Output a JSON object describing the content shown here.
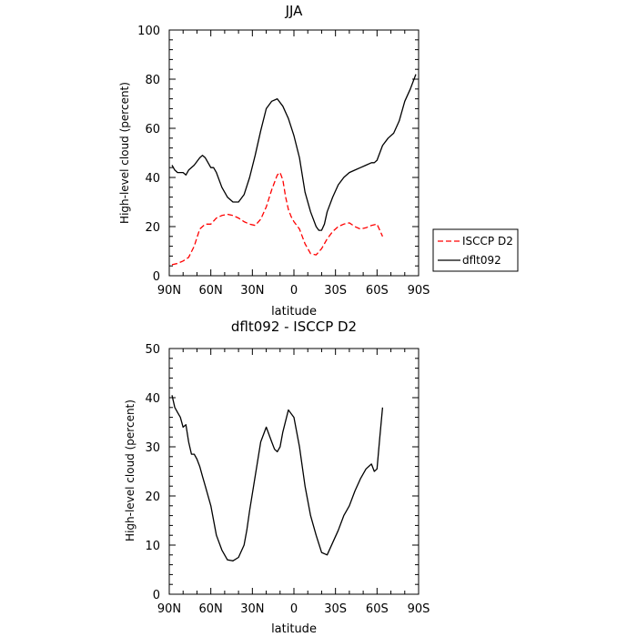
{
  "chart_data": [
    {
      "type": "line",
      "title": "JJA",
      "xlabel": "latitude",
      "ylabel": "High-level cloud (percent)",
      "x_tick_labels": [
        "90N",
        "60N",
        "30N",
        "0",
        "30S",
        "60S",
        "90S"
      ],
      "x_ticks": [
        90,
        60,
        30,
        0,
        -30,
        -60,
        -90
      ],
      "y_ticks": [
        0,
        20,
        40,
        60,
        80,
        100
      ],
      "xlim": [
        90,
        -90
      ],
      "ylim": [
        0,
        100
      ],
      "grid": false,
      "legend_position": "right, outside",
      "series": [
        {
          "name": "ISCCP D2",
          "color": "#ff0000",
          "style": "dashed",
          "x": [
            88,
            84,
            80,
            76,
            72,
            68,
            64,
            60,
            56,
            52,
            48,
            44,
            40,
            36,
            32,
            28,
            24,
            20,
            16,
            12,
            10,
            8,
            6,
            4,
            2,
            0,
            -4,
            -8,
            -12,
            -16,
            -20,
            -24,
            -28,
            -32,
            -36,
            -40,
            -44,
            -48,
            -52,
            -56,
            -60,
            -64
          ],
          "y": [
            4.5,
            5,
            6,
            7.5,
            12,
            19,
            21,
            21,
            23.5,
            24.5,
            25,
            24.5,
            23.5,
            22,
            21,
            20.5,
            23,
            28,
            35,
            41,
            42,
            39,
            32,
            27,
            24,
            22,
            19,
            13,
            9,
            8.5,
            11,
            15,
            18,
            20,
            21,
            21.5,
            20,
            19,
            19.5,
            20.5,
            21,
            16
          ]
        },
        {
          "name": "dflt092",
          "color": "#000000",
          "style": "solid",
          "x": [
            88,
            86,
            84,
            82,
            80,
            78,
            76,
            72,
            68,
            66,
            64,
            60,
            58,
            56,
            52,
            48,
            44,
            40,
            36,
            32,
            28,
            24,
            20,
            16,
            12,
            8,
            4,
            0,
            -4,
            -8,
            -12,
            -16,
            -18,
            -20,
            -22,
            -24,
            -28,
            -32,
            -36,
            -40,
            -44,
            -48,
            -52,
            -56,
            -58,
            -60,
            -64,
            -68,
            -72,
            -76,
            -80,
            -84,
            -88
          ],
          "y": [
            45,
            43,
            42,
            42,
            42,
            41,
            43,
            45,
            48,
            49,
            48,
            44,
            44,
            42,
            36,
            32,
            30,
            30,
            33,
            40,
            49,
            59,
            68,
            71,
            72,
            69,
            64,
            57,
            48,
            34,
            26,
            20,
            18.5,
            18.5,
            21,
            26,
            32,
            37,
            40,
            42,
            43,
            44,
            45,
            46,
            46,
            47,
            53,
            56,
            58,
            63,
            71,
            76,
            82
          ]
        }
      ]
    },
    {
      "type": "line",
      "title": "dflt092 - ISCCP D2",
      "xlabel": "latitude",
      "ylabel": "High-level cloud (percent)",
      "x_tick_labels": [
        "90N",
        "60N",
        "30N",
        "0",
        "30S",
        "60S",
        "90S"
      ],
      "x_ticks": [
        90,
        60,
        30,
        0,
        -30,
        -60,
        -90
      ],
      "y_ticks": [
        0,
        10,
        20,
        30,
        40,
        50
      ],
      "xlim": [
        90,
        -90
      ],
      "ylim": [
        0,
        50
      ],
      "grid": false,
      "series": [
        {
          "color": "#000000",
          "style": "solid",
          "x": [
            88,
            86,
            84,
            82,
            80,
            78,
            76,
            74,
            72,
            70,
            68,
            66,
            64,
            60,
            56,
            52,
            48,
            44,
            40,
            36,
            34,
            32,
            28,
            24,
            20,
            16,
            14,
            12,
            10,
            8,
            4,
            0,
            -4,
            -8,
            -12,
            -16,
            -20,
            -24,
            -28,
            -32,
            -36,
            -40,
            -44,
            -48,
            -52,
            -56,
            -58,
            -60,
            -62,
            -64
          ],
          "y": [
            40.5,
            38,
            37,
            36,
            34,
            34.5,
            31,
            28.5,
            28.5,
            27.5,
            26,
            24,
            22,
            18,
            12,
            9,
            7,
            6.8,
            7.5,
            10,
            13,
            17,
            24,
            31,
            34,
            31,
            29.5,
            29,
            30,
            33,
            37.5,
            36,
            30,
            22,
            16,
            12,
            8.5,
            8,
            10.5,
            13,
            16,
            18,
            21,
            23.5,
            25.5,
            26.5,
            25,
            25.5,
            32,
            38
          ]
        }
      ]
    }
  ]
}
